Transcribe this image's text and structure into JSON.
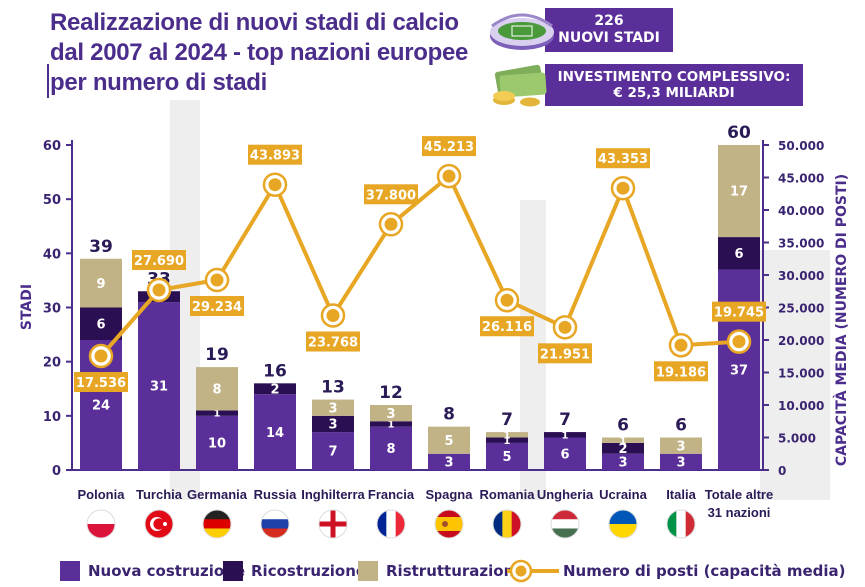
{
  "title": {
    "line1": "Realizzazione di nuovi stadi di calcio",
    "line2": "dal 2007 al 2024 - top nazioni europee",
    "line3": "per numero di stadi"
  },
  "info": {
    "stadiums_count": "226",
    "stadiums_label": "NUOVI STADI",
    "investment_label": "INVESTIMENTO COMPLESSIVO:",
    "investment_value": "€ 25,3 MILIARDI"
  },
  "legend": {
    "new": "Nuova costruzione",
    "rebuild": "Ricostruzione",
    "renovation": "Ristrutturazione",
    "seats": "Numero di posti (capacità media)"
  },
  "colors": {
    "new": "#5b2f99",
    "rebuild": "#2a0f52",
    "renovation": "#c2b387",
    "line": "#e7a624",
    "title": "#4b2d8c"
  },
  "chart_data": {
    "type": "bar",
    "stacked": true,
    "ylabel": "STADI",
    "y2label": "CAPACITÀ MEDIA (NUMERO DI POSTI)",
    "ylim": [
      0,
      60
    ],
    "y2lim": [
      0,
      50000
    ],
    "yticks": [
      "0",
      "10",
      "20",
      "30",
      "40",
      "50",
      "60"
    ],
    "y2ticks": [
      "0",
      "5.000",
      "10.000",
      "15.000",
      "20.000",
      "25.000",
      "30.000",
      "35.000",
      "40.000",
      "45.000",
      "50.000"
    ],
    "categories": [
      "Polonia",
      "Turchia",
      "Germania",
      "Russia",
      "Inghilterra",
      "Francia",
      "Spagna",
      "Romania",
      "Ungheria",
      "Ucraina",
      "Italia",
      "Totale altre 31 nazioni"
    ],
    "totals": [
      39,
      33,
      19,
      16,
      13,
      12,
      8,
      7,
      7,
      6,
      6,
      60
    ],
    "series": [
      {
        "name": "Nuova costruzione",
        "values": [
          24,
          31,
          10,
          14,
          7,
          8,
          3,
          5,
          6,
          3,
          3,
          37
        ]
      },
      {
        "name": "Ricostruzione",
        "values": [
          6,
          2,
          1,
          2,
          3,
          1,
          0,
          1,
          1,
          2,
          0,
          6
        ]
      },
      {
        "name": "Ristrutturazione",
        "values": [
          9,
          0,
          8,
          0,
          3,
          3,
          5,
          1,
          0,
          1,
          3,
          17
        ]
      }
    ],
    "line_series": {
      "name": "Numero di posti (capacità media)",
      "values": [
        17536,
        27690,
        29234,
        43893,
        23768,
        37800,
        45213,
        26116,
        21951,
        43353,
        19186,
        19745
      ],
      "labels": [
        "17.536",
        "27.690",
        "29.234",
        "43.893",
        "23.768",
        "37.800",
        "45.213",
        "26.116",
        "21.951",
        "43.353",
        "19.186",
        "19.745"
      ]
    }
  }
}
